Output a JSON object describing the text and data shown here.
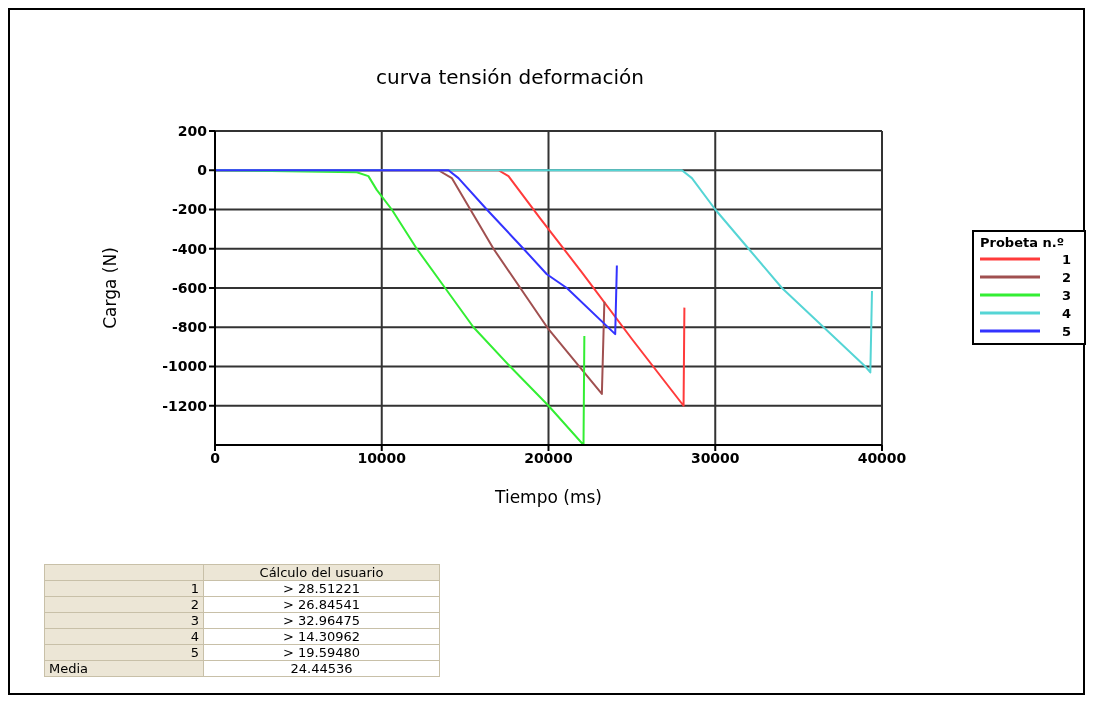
{
  "chart_data": {
    "type": "line",
    "title": "curva tensión deformación",
    "xlabel": "Tiempo (ms)",
    "ylabel": "Carga (N)",
    "legend_title": "Probeta n.º",
    "legend": "right",
    "grid": true,
    "marker": "none",
    "line_style": "solid",
    "xlim": [
      0,
      40000
    ],
    "xticks": [
      0,
      10000,
      20000,
      30000,
      40000
    ],
    "ylim": [
      -1400,
      200
    ],
    "yticks": [
      200,
      0,
      -200,
      -400,
      -600,
      -800,
      -1000,
      -1200
    ],
    "series": [
      {
        "name": "1",
        "color": "#ff3b3b",
        "x": [
          0,
          17000,
          17600,
          19500,
          22000,
          25000,
          28100,
          28150
        ],
        "values": [
          0,
          0,
          -30,
          -245,
          -520,
          -860,
          -1200,
          -700
        ]
      },
      {
        "name": "2",
        "color": "#a05050",
        "x": [
          0,
          13400,
          14200,
          16700,
          20000,
          23200,
          23350
        ],
        "values": [
          0,
          0,
          -40,
          -400,
          -810,
          -1140,
          -670
        ]
      },
      {
        "name": "3",
        "color": "#33ee33",
        "x": [
          0,
          8500,
          9200,
          9700,
          10600,
          12100,
          13800,
          15500,
          17700,
          20000,
          22100,
          22150
        ],
        "values": [
          0,
          -10,
          -30,
          -100,
          -200,
          -400,
          -600,
          -800,
          -1000,
          -1200,
          -1400,
          -845
        ]
      },
      {
        "name": "4",
        "color": "#55d5d5",
        "x": [
          0,
          28000,
          28600,
          30000,
          32000,
          34000,
          36500,
          39000,
          39300,
          39400
        ],
        "values": [
          0,
          0,
          -40,
          -200,
          -400,
          -600,
          -800,
          -1000,
          -1030,
          -615
        ]
      },
      {
        "name": "5",
        "color": "#3333ff",
        "x": [
          0,
          14000,
          14600,
          16300,
          18500,
          19900,
          21100,
          24000,
          24100
        ],
        "values": [
          0,
          0,
          -40,
          -200,
          -400,
          -530,
          -600,
          -835,
          -485
        ]
      }
    ],
    "annotations": [
      "Cálculo del usuario",
      "1",
      "> 28.51221",
      "2",
      "> 26.84541",
      "3",
      "> 32.96475",
      "4",
      "> 14.30962",
      "5",
      "> 19.59480",
      "Media",
      "24.44536"
    ]
  }
}
